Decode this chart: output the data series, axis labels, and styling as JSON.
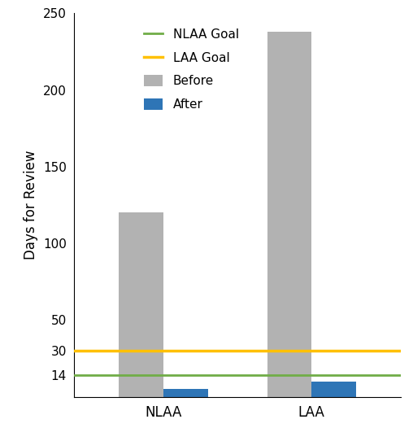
{
  "categories": [
    "NLAA",
    "LAA"
  ],
  "before_values": [
    120,
    238
  ],
  "after_values": [
    5,
    10
  ],
  "nlaa_goal": 14,
  "laa_goal": 30,
  "bar_color_before": "#b2b2b2",
  "bar_color_after": "#2e75b6",
  "nlaa_goal_color": "#70ad47",
  "laa_goal_color": "#ffc000",
  "ylabel": "Days for Review",
  "ylim": [
    0,
    250
  ],
  "ytick_values": [
    0,
    14,
    30,
    50,
    100,
    150,
    200,
    250
  ],
  "ytick_labels": [
    "",
    "14",
    "30",
    "50",
    "100",
    "150",
    "200",
    "250"
  ],
  "legend_labels": [
    "Before",
    "After",
    "NLAA Goal",
    "LAA Goal"
  ],
  "bar_width": 0.3,
  "figsize": [
    5.08,
    5.42
  ],
  "dpi": 100
}
